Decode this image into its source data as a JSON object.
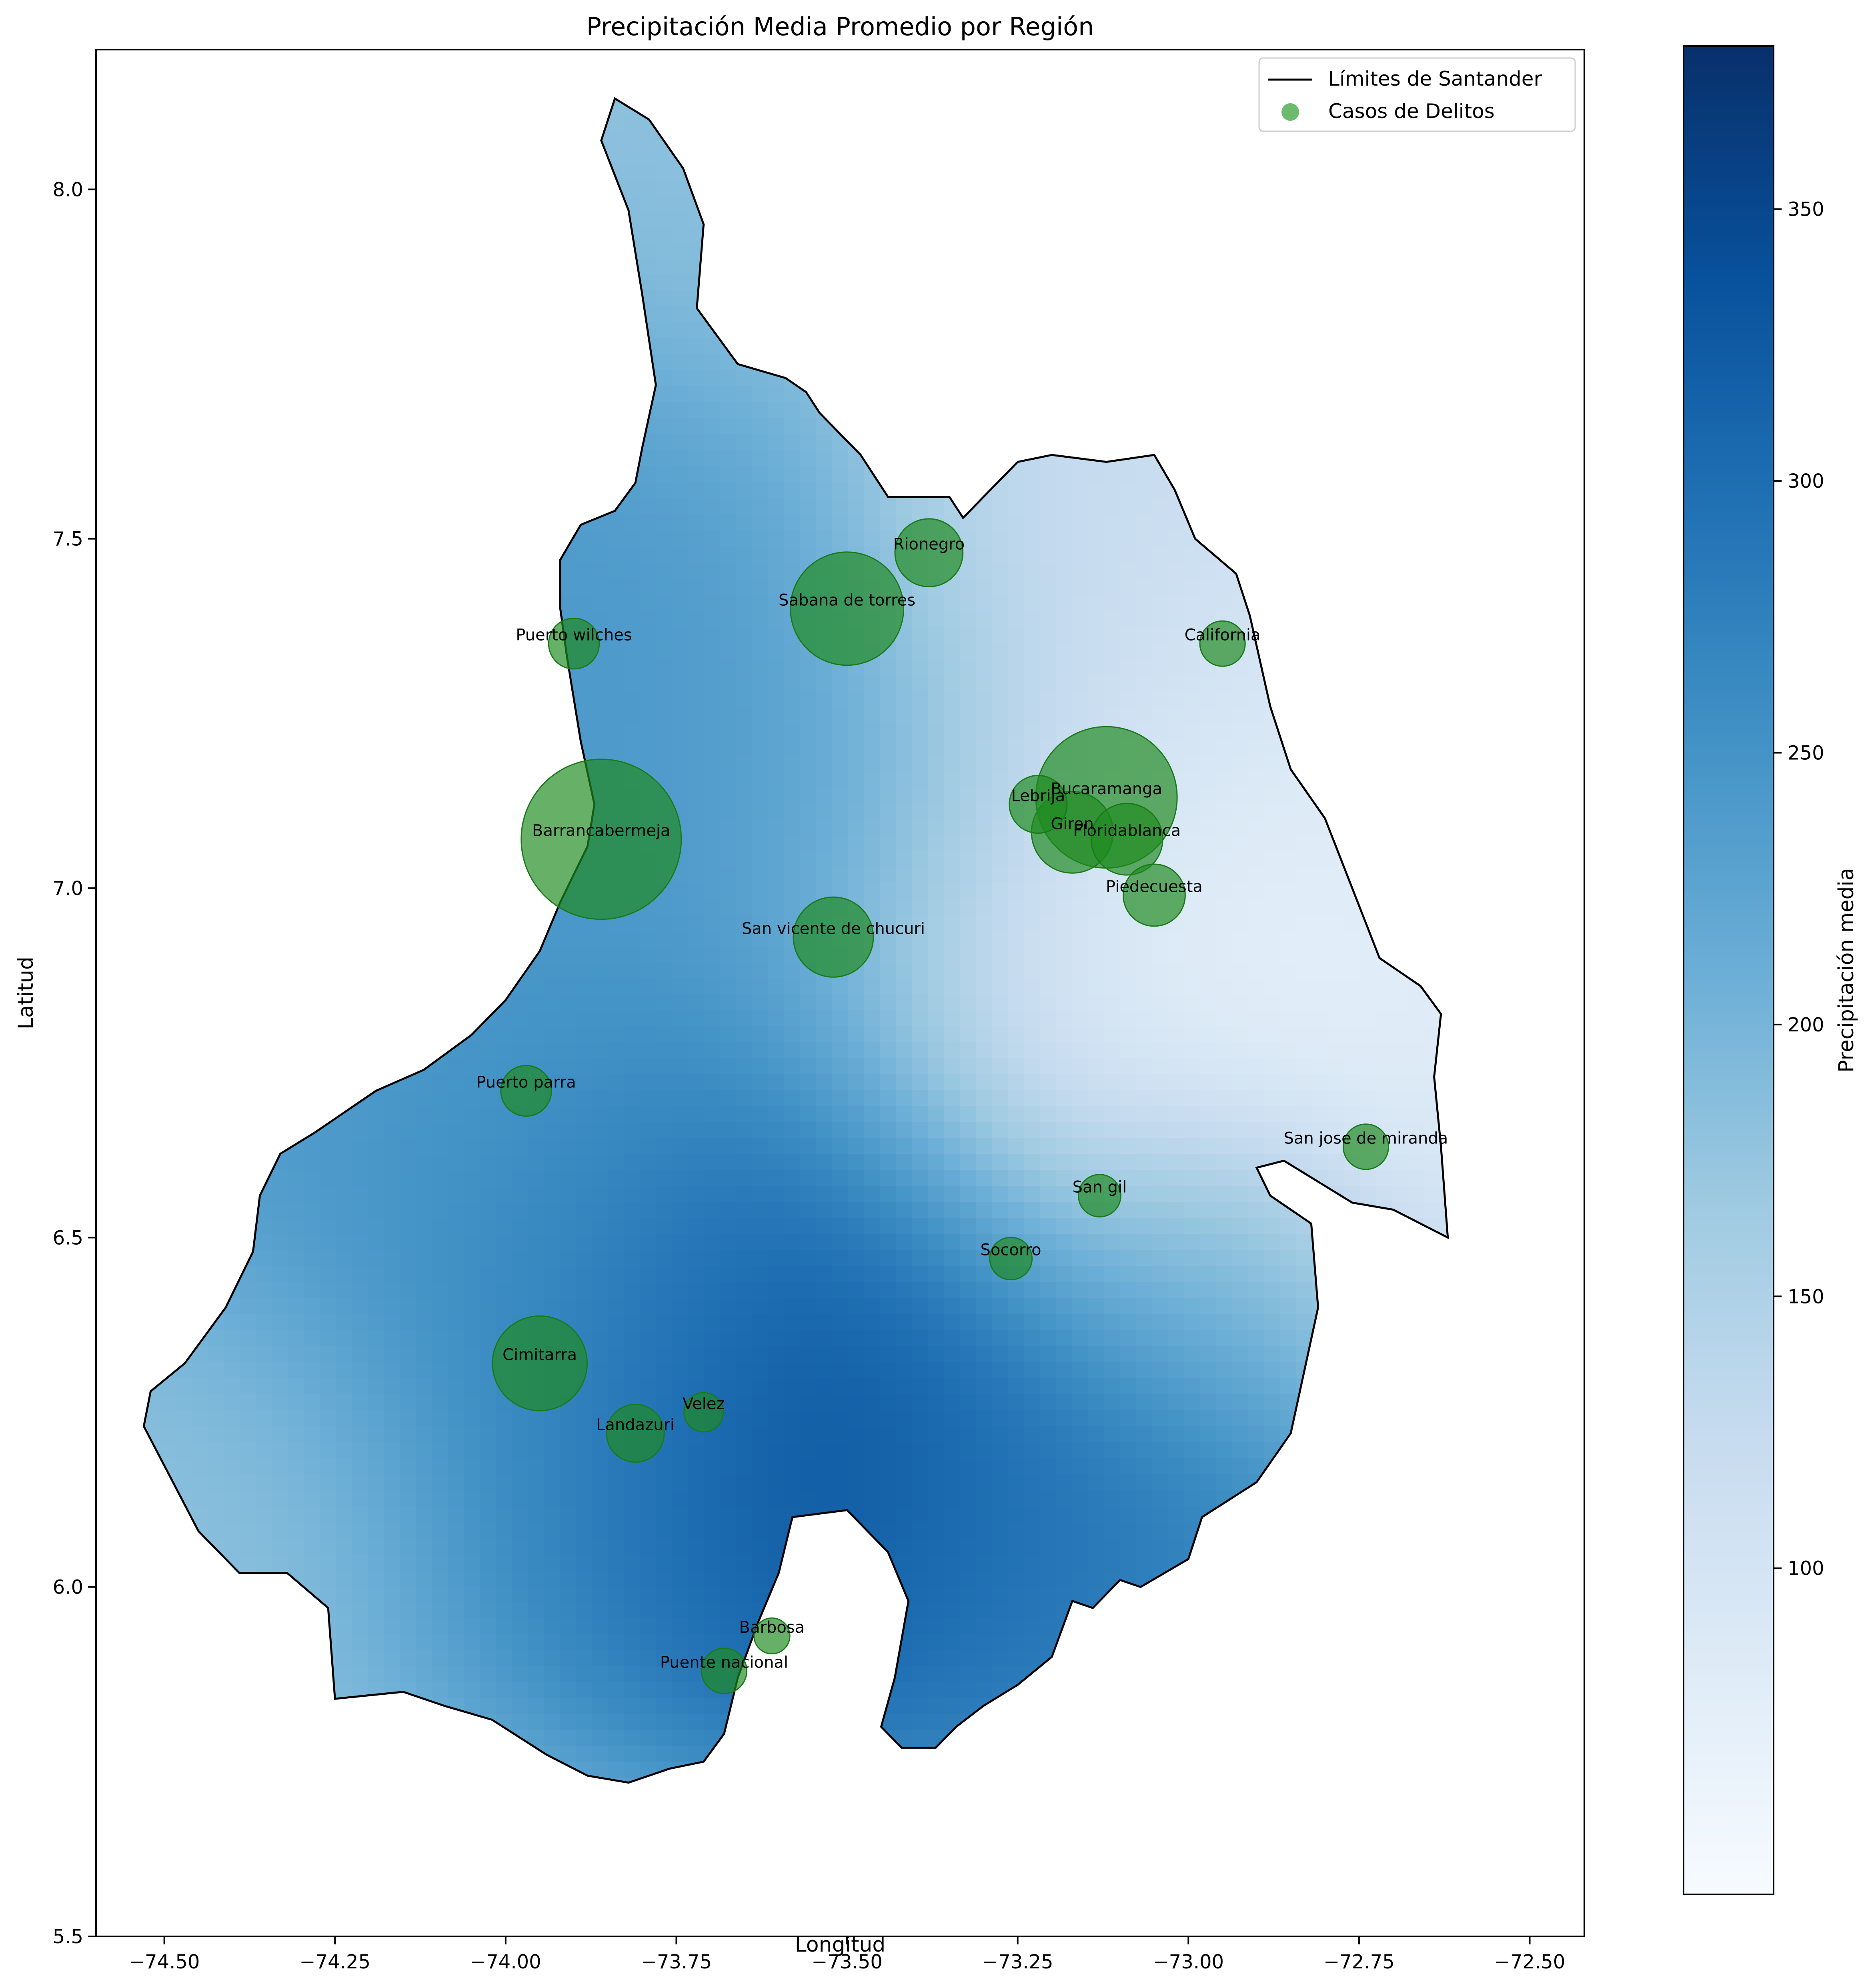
{
  "figure": {
    "title": "Precipitación Media Promedio por Región",
    "xlabel": "Longitud",
    "ylabel": "Latitud"
  },
  "legend": {
    "placement": "top-right",
    "items": [
      {
        "label": "Límites de Santander",
        "marker": "line",
        "color": "#000000"
      },
      {
        "label": "Casos de Delitos",
        "marker": "circle",
        "color": "#2e9e2e"
      }
    ]
  },
  "colorbar": {
    "label": "Precipitación media",
    "colormap": "Blues",
    "range": [
      40,
      380
    ],
    "ticks": [
      100,
      150,
      200,
      250,
      300,
      350
    ],
    "tick_labels": [
      "100",
      "150",
      "200",
      "250",
      "300",
      "350"
    ]
  },
  "chart_data": {
    "type": "scatter",
    "title": "Precipitación Media Promedio por Región",
    "xlabel": "Longitud",
    "ylabel": "Latitud",
    "xlim": [
      -74.6,
      -72.42
    ],
    "ylim": [
      5.5,
      8.2
    ],
    "x_ticks": [
      -74.5,
      -74.25,
      -74.0,
      -73.75,
      -73.5,
      -73.25,
      -73.0,
      -72.75,
      -72.5
    ],
    "x_tick_labels": [
      "−74.50",
      "−74.25",
      "−74.00",
      "−73.75",
      "−73.50",
      "−73.25",
      "−73.00",
      "−72.75",
      "−72.50"
    ],
    "y_ticks": [
      5.5,
      6.0,
      6.5,
      7.0,
      7.5,
      8.0
    ],
    "y_tick_labels": [
      "5.5",
      "6.0",
      "6.5",
      "7.0",
      "7.5",
      "8.0"
    ],
    "grid": false,
    "points": [
      {
        "name": "Barrancabermeja",
        "lon": -73.86,
        "lat": 7.07,
        "relative_cases": 1.0
      },
      {
        "name": "Bucaramanga",
        "lon": -73.12,
        "lat": 7.13,
        "relative_cases": 0.78
      },
      {
        "name": "Sabana de torres",
        "lon": -73.5,
        "lat": 7.4,
        "relative_cases": 0.5
      },
      {
        "name": "Cimitarra",
        "lon": -73.95,
        "lat": 6.32,
        "relative_cases": 0.35
      },
      {
        "name": "Giron",
        "lon": -73.17,
        "lat": 7.08,
        "relative_cases": 0.26
      },
      {
        "name": "San vicente de chucuri",
        "lon": -73.52,
        "lat": 6.93,
        "relative_cases": 0.25
      },
      {
        "name": "Floridablanca",
        "lon": -73.09,
        "lat": 7.07,
        "relative_cases": 0.2
      },
      {
        "name": "Rionegro",
        "lon": -73.38,
        "lat": 7.48,
        "relative_cases": 0.18
      },
      {
        "name": "Piedecuesta",
        "lon": -73.05,
        "lat": 6.99,
        "relative_cases": 0.15
      },
      {
        "name": "Lebrija",
        "lon": -73.22,
        "lat": 7.12,
        "relative_cases": 0.13
      },
      {
        "name": "Landazuri",
        "lon": -73.81,
        "lat": 6.22,
        "relative_cases": 0.13
      },
      {
        "name": "Puerto wilches",
        "lon": -73.9,
        "lat": 7.35,
        "relative_cases": 0.1
      },
      {
        "name": "Puerto parra",
        "lon": -73.97,
        "lat": 6.71,
        "relative_cases": 0.1
      },
      {
        "name": "San jose de miranda",
        "lon": -72.74,
        "lat": 6.63,
        "relative_cases": 0.08
      },
      {
        "name": "California",
        "lon": -72.95,
        "lat": 7.35,
        "relative_cases": 0.08
      },
      {
        "name": "Puente nacional",
        "lon": -73.68,
        "lat": 5.88,
        "relative_cases": 0.08
      },
      {
        "name": "Socorro",
        "lon": -73.26,
        "lat": 6.47,
        "relative_cases": 0.07
      },
      {
        "name": "San gil",
        "lon": -73.13,
        "lat": 6.56,
        "relative_cases": 0.07
      },
      {
        "name": "Velez",
        "lon": -73.71,
        "lat": 6.25,
        "relative_cases": 0.06
      },
      {
        "name": "Barbosa",
        "lon": -73.61,
        "lat": 5.93,
        "relative_cases": 0.05
      }
    ],
    "boundary": [
      [
        -73.84,
        8.13
      ],
      [
        -73.79,
        8.1
      ],
      [
        -73.74,
        8.03
      ],
      [
        -73.71,
        7.95
      ],
      [
        -73.72,
        7.83
      ],
      [
        -73.66,
        7.75
      ],
      [
        -73.59,
        7.73
      ],
      [
        -73.56,
        7.71
      ],
      [
        -73.54,
        7.68
      ],
      [
        -73.48,
        7.62
      ],
      [
        -73.44,
        7.56
      ],
      [
        -73.35,
        7.56
      ],
      [
        -73.33,
        7.53
      ],
      [
        -73.25,
        7.61
      ],
      [
        -73.2,
        7.62
      ],
      [
        -73.12,
        7.61
      ],
      [
        -73.05,
        7.62
      ],
      [
        -73.02,
        7.57
      ],
      [
        -72.99,
        7.5
      ],
      [
        -72.93,
        7.45
      ],
      [
        -72.91,
        7.39
      ],
      [
        -72.88,
        7.26
      ],
      [
        -72.85,
        7.17
      ],
      [
        -72.8,
        7.1
      ],
      [
        -72.72,
        6.9
      ],
      [
        -72.66,
        6.86
      ],
      [
        -72.63,
        6.82
      ],
      [
        -72.64,
        6.73
      ],
      [
        -72.63,
        6.63
      ],
      [
        -72.62,
        6.5
      ],
      [
        -72.7,
        6.54
      ],
      [
        -72.76,
        6.55
      ],
      [
        -72.86,
        6.61
      ],
      [
        -72.9,
        6.6
      ],
      [
        -72.88,
        6.56
      ],
      [
        -72.82,
        6.52
      ],
      [
        -72.81,
        6.4
      ],
      [
        -72.85,
        6.22
      ],
      [
        -72.9,
        6.15
      ],
      [
        -72.98,
        6.1
      ],
      [
        -73.0,
        6.04
      ],
      [
        -73.07,
        6.0
      ],
      [
        -73.1,
        6.01
      ],
      [
        -73.14,
        5.97
      ],
      [
        -73.17,
        5.98
      ],
      [
        -73.2,
        5.9
      ],
      [
        -73.25,
        5.86
      ],
      [
        -73.3,
        5.83
      ],
      [
        -73.34,
        5.8
      ],
      [
        -73.37,
        5.77
      ],
      [
        -73.42,
        5.77
      ],
      [
        -73.45,
        5.8
      ],
      [
        -73.43,
        5.87
      ],
      [
        -73.41,
        5.98
      ],
      [
        -73.44,
        6.05
      ],
      [
        -73.5,
        6.11
      ],
      [
        -73.58,
        6.1
      ],
      [
        -73.6,
        6.02
      ],
      [
        -73.63,
        5.95
      ],
      [
        -73.66,
        5.87
      ],
      [
        -73.68,
        5.79
      ],
      [
        -73.71,
        5.75
      ],
      [
        -73.76,
        5.74
      ],
      [
        -73.82,
        5.72
      ],
      [
        -73.88,
        5.73
      ],
      [
        -73.94,
        5.76
      ],
      [
        -74.02,
        5.81
      ],
      [
        -74.09,
        5.83
      ],
      [
        -74.15,
        5.85
      ],
      [
        -74.25,
        5.84
      ],
      [
        -74.26,
        5.97
      ],
      [
        -74.32,
        6.02
      ],
      [
        -74.39,
        6.02
      ],
      [
        -74.45,
        6.08
      ],
      [
        -74.53,
        6.23
      ],
      [
        -74.52,
        6.28
      ],
      [
        -74.47,
        6.32
      ],
      [
        -74.41,
        6.4
      ],
      [
        -74.37,
        6.48
      ],
      [
        -74.36,
        6.56
      ],
      [
        -74.33,
        6.62
      ],
      [
        -74.28,
        6.65
      ],
      [
        -74.19,
        6.71
      ],
      [
        -74.12,
        6.74
      ],
      [
        -74.05,
        6.79
      ],
      [
        -74.0,
        6.84
      ],
      [
        -73.95,
        6.91
      ],
      [
        -73.92,
        6.98
      ],
      [
        -73.88,
        7.06
      ],
      [
        -73.87,
        7.12
      ],
      [
        -73.89,
        7.21
      ],
      [
        -73.91,
        7.33
      ],
      [
        -73.92,
        7.4
      ],
      [
        -73.92,
        7.47
      ],
      [
        -73.89,
        7.52
      ],
      [
        -73.84,
        7.54
      ],
      [
        -73.81,
        7.58
      ],
      [
        -73.8,
        7.63
      ],
      [
        -73.78,
        7.72
      ],
      [
        -73.8,
        7.85
      ],
      [
        -73.82,
        7.97
      ],
      [
        -73.86,
        8.07
      ]
    ],
    "precipitation_field": {
      "description_of_field": null,
      "centers": [
        {
          "lon": -73.53,
          "lat": 6.34,
          "value": 380,
          "radius": 0.42
        },
        {
          "lon": -73.16,
          "lat": 6.11,
          "value": 285,
          "radius": 0.3
        },
        {
          "lon": -73.55,
          "lat": 7.14,
          "value": 255,
          "radius": 0.35
        },
        {
          "lon": -74.1,
          "lat": 6.8,
          "value": 250,
          "radius": 0.45
        },
        {
          "lon": -73.88,
          "lat": 7.5,
          "value": 250,
          "radius": 0.3
        },
        {
          "lon": -72.98,
          "lat": 6.47,
          "value": 225,
          "radius": 0.2
        },
        {
          "lon": -73.93,
          "lat": 6.35,
          "value": 250,
          "radius": 0.35
        },
        {
          "lon": -73.1,
          "lat": 6.8,
          "value": 55,
          "radius": 0.4
        },
        {
          "lon": -72.85,
          "lat": 7.05,
          "value": 70,
          "radius": 0.45
        },
        {
          "lon": -73.1,
          "lat": 7.45,
          "value": 120,
          "radius": 0.35
        },
        {
          "lon": -73.72,
          "lat": 7.95,
          "value": 185,
          "radius": 0.3
        },
        {
          "lon": -74.4,
          "lat": 6.15,
          "value": 180,
          "radius": 0.25
        }
      ]
    }
  }
}
